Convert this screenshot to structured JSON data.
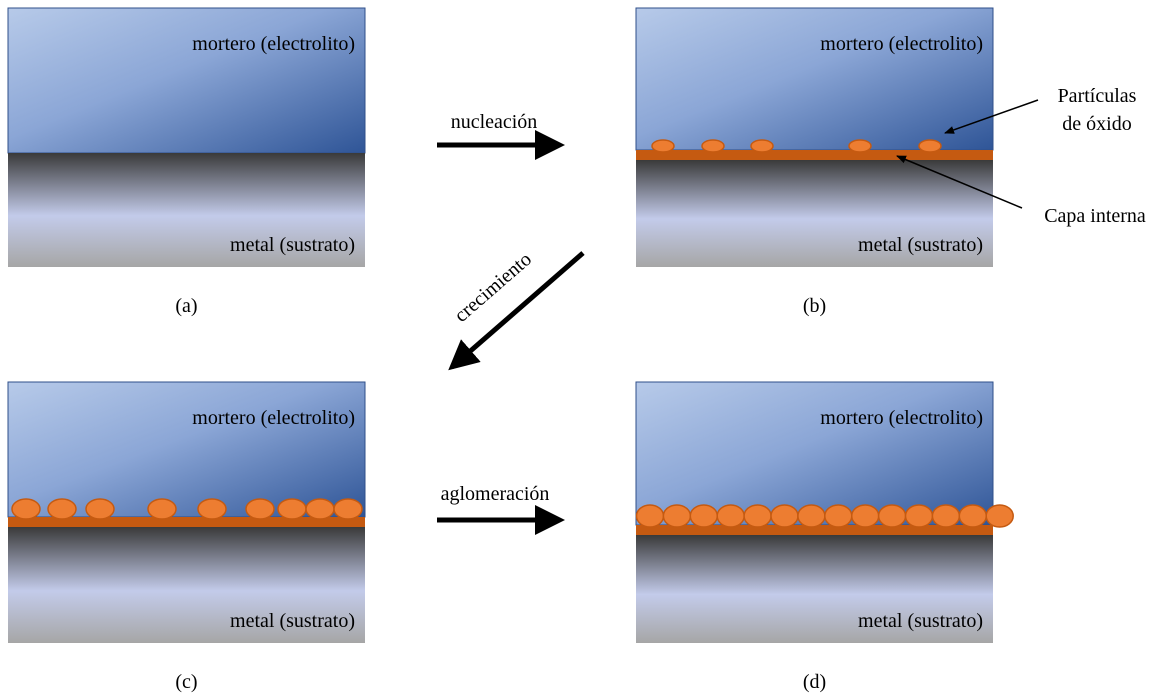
{
  "panels": [
    {
      "electrolyte_label": "mortero (electrolito)",
      "substrate_label": "metal (sustrato)",
      "caption": "(a)"
    },
    {
      "electrolyte_label": "mortero (electrolito)",
      "substrate_label": "metal (sustrato)",
      "caption": "(b)"
    },
    {
      "electrolyte_label": "mortero (electrolito)",
      "substrate_label": "metal (sustrato)",
      "caption": "(c)"
    },
    {
      "electrolyte_label": "mortero (electrolito)",
      "substrate_label": "metal (sustrato)",
      "caption": "(d)"
    }
  ],
  "processes": [
    {
      "label": "nucleación"
    },
    {
      "label": "crecimiento"
    },
    {
      "label": "aglomeración"
    }
  ],
  "annotations": [
    {
      "label_lines": [
        "Partículas",
        "de óxido"
      ]
    },
    {
      "label_lines": [
        "Capa interna"
      ]
    }
  ]
}
